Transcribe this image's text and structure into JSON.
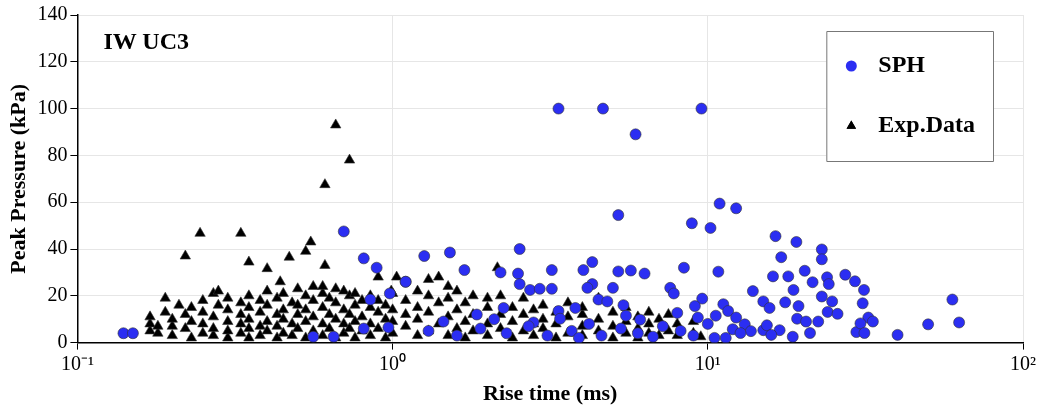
{
  "chart_data": {
    "type": "scatter",
    "xlabel": "Rise time (ms)",
    "ylabel": "Peak Pressure (kPa)",
    "annotations": [
      "IW UC3"
    ],
    "log": "x",
    "grid": true,
    "legend": "top right",
    "xlim": [
      0.1,
      100
    ],
    "xticks": [
      {
        "value": 0.1,
        "label": "10⁻¹"
      },
      {
        "value": 1,
        "label": "10⁰"
      },
      {
        "value": 10,
        "label": "10¹"
      },
      {
        "value": 100,
        "label": "10²"
      }
    ],
    "ylim": [
      0,
      140
    ],
    "yticks": [
      0,
      20,
      40,
      60,
      80,
      100,
      120,
      140
    ],
    "series": [
      {
        "name": "SPH",
        "color": "#2b2ef2",
        "marker": "circle",
        "x": [
          0.14,
          0.15,
          0.7,
          0.81,
          0.89,
          0.85,
          0.98,
          1.1,
          0.56,
          0.65,
          0.81,
          0.97,
          1.26,
          1.52,
          2.53,
          1.69,
          2.2,
          2.5,
          2.53,
          2.73,
          2.93,
          3.2,
          3.2,
          4.03,
          4.3,
          4.3,
          4.15,
          5.2,
          5.2,
          5.7,
          6.3,
          8.9,
          8.4,
          7.6,
          7.8,
          5,
          4.5,
          4.8,
          1.1,
          3.36,
          3.8,
          5.4,
          5.5,
          6.1,
          8,
          9.6,
          9.1,
          9.3,
          2.25,
          3.4,
          2.8,
          3.36,
          4.65,
          5.9,
          9.55,
          10.9,
          12.3,
          10.2,
          16.4,
          19.1,
          23,
          17.1,
          23,
          10.8,
          20.3,
          16.1,
          18,
          23.9,
          27.3,
          21.5,
          24.2,
          29.3,
          31.3,
          13.9,
          18.7,
          23,
          15,
          17.6,
          24.8,
          15.7,
          19.4,
          31,
          11.2,
          11.6,
          12.3,
          24,
          25.8,
          19.2,
          20.5,
          22.4,
          32.3,
          33.4,
          10.6,
          13.1,
          13.7,
          15,
          15.4,
          16.9,
          15.9,
          18.6,
          21.1,
          12,
          12.7,
          11.4,
          10.5,
          29.6,
          30.5,
          31.4,
          40,
          50,
          59.7,
          62.7,
          1.3,
          1.6,
          1.9,
          2.3,
          2.7,
          3.1,
          3.7,
          4.2,
          4.6,
          5.3,
          6,
          6.7,
          7.2,
          8.2,
          9,
          10,
          1.45,
          1.85,
          2.1,
          3.9
        ],
        "values": [
          4,
          4,
          47.5,
          36,
          32,
          18.4,
          21,
          26,
          2.5,
          2.5,
          6,
          6.5,
          37,
          38.5,
          40,
          31,
          30,
          29.5,
          25,
          22.5,
          23,
          31,
          23,
          31,
          34.4,
          25,
          23.4,
          54.5,
          30.4,
          30.8,
          29.5,
          51,
          32,
          23.4,
          21,
          23.4,
          18.4,
          17.6,
          26,
          13.5,
          14.8,
          16,
          11.5,
          9.8,
          12.7,
          18.8,
          15.6,
          10.7,
          14.8,
          10.2,
          8.6,
          100,
          100,
          89,
          100,
          59.4,
          57.4,
          49,
          45.5,
          43,
          39.8,
          36.5,
          35.6,
          30.3,
          30.7,
          28.3,
          28.3,
          27.9,
          29,
          25.8,
          25,
          26.2,
          22.5,
          22,
          22.5,
          19.7,
          17.6,
          17.2,
          17.6,
          14.8,
          15.6,
          16.8,
          16.4,
          13.5,
          10.7,
          13.1,
          12.3,
          10.2,
          9,
          9,
          10.7,
          9,
          11.5,
          7.8,
          4.9,
          5.3,
          7.4,
          5.3,
          3.3,
          2.5,
          4.1,
          5.7,
          4.1,
          2,
          2,
          4.5,
          8.2,
          4.1,
          3.3,
          7.8,
          18.4,
          8.6,
          5,
          3,
          6,
          4,
          7,
          3,
          5,
          8,
          3,
          6,
          4,
          2.5,
          7,
          5,
          3,
          8,
          9,
          12,
          10,
          2
        ]
      },
      {
        "name": "Exp.Data",
        "color": "#000000",
        "marker": "triangle",
        "x": [
          0.61,
          0.245,
          0.33,
          0.22,
          0.35,
          0.4,
          0.47,
          0.55,
          0.53,
          0.61,
          0.44,
          0.9,
          1.03,
          0.99,
          0.66,
          0.73,
          2.15,
          0.17,
          0.17,
          0.17,
          0.18,
          0.18,
          0.19,
          0.19,
          0.2,
          0.2,
          0.2,
          0.21,
          0.22,
          0.22,
          0.23,
          0.23,
          0.23,
          0.25,
          0.25,
          0.25,
          0.25,
          0.27,
          0.27,
          0.27,
          0.27,
          0.28,
          0.28,
          0.3,
          0.3,
          0.3,
          0.3,
          0.3,
          0.33,
          0.33,
          0.33,
          0.33,
          0.35,
          0.35,
          0.35,
          0.35,
          0.35,
          0.38,
          0.38,
          0.38,
          0.38,
          0.4,
          0.4,
          0.4,
          0.4,
          0.43,
          0.43,
          0.43,
          0.43,
          0.45,
          0.45,
          0.45,
          0.45,
          0.48,
          0.48,
          0.48,
          0.5,
          0.5,
          0.5,
          0.5,
          0.53,
          0.53,
          0.53,
          0.53,
          0.56,
          0.56,
          0.56,
          0.56,
          0.6,
          0.6,
          0.6,
          0.6,
          0.6,
          0.63,
          0.63,
          0.63,
          0.66,
          0.66,
          0.66,
          0.66,
          0.7,
          0.7,
          0.7,
          0.7,
          0.73,
          0.73,
          0.73,
          0.76,
          0.76,
          0.76,
          0.76,
          0.8,
          0.8,
          0.8,
          0.85,
          0.85,
          0.85,
          0.85,
          0.9,
          0.9,
          0.9,
          0.95,
          0.95,
          0.95,
          1,
          1,
          1,
          1,
          1.1,
          1.1,
          1.1,
          1.2,
          1.2,
          1.2,
          1.2,
          1.3,
          1.3,
          1.3,
          1.3,
          1.4,
          1.4,
          1.4,
          1.5,
          1.5,
          1.5,
          1.5,
          1.6,
          1.6,
          1.6,
          1.7,
          1.7,
          1.7,
          1.8,
          1.8,
          1.8,
          2,
          2,
          2,
          2,
          2.2,
          2.2,
          2.2,
          2.4,
          2.4,
          2.4,
          2.6,
          2.6,
          2.6,
          2.8,
          2.8,
          2.8,
          3,
          3,
          3,
          3.3,
          3.3,
          3.3,
          3.6,
          3.6,
          3.6,
          4,
          4,
          4,
          4,
          4.5,
          4.5,
          4.5,
          5,
          5,
          5,
          5.5,
          5.5,
          5.5,
          6,
          6,
          6,
          6.5,
          6.5,
          6.5,
          7,
          7,
          7.5,
          7.5,
          8,
          8,
          9,
          9,
          9.5
        ],
        "values": [
          67.5,
          46.7,
          46.7,
          37,
          34.4,
          31.6,
          36.5,
          43,
          39,
          33,
          26,
          28,
          28,
          22,
          93,
          78,
          32,
          5,
          8,
          11,
          4,
          7,
          13,
          19,
          3,
          7,
          10,
          16,
          6,
          12,
          2,
          9,
          15,
          4,
          8,
          13,
          18,
          3,
          6,
          11,
          21,
          16,
          22,
          2,
          5,
          9,
          14,
          19,
          4,
          8,
          12,
          17,
          2,
          6,
          10,
          15,
          20,
          3,
          7,
          13,
          18,
          5,
          9,
          16,
          22,
          2,
          7,
          12,
          19,
          4,
          10,
          14,
          21,
          3,
          8,
          17,
          6,
          12,
          16,
          23,
          2,
          9,
          14,
          20,
          5,
          11,
          18,
          24,
          3,
          8,
          15,
          21,
          24,
          6,
          12,
          19,
          2,
          10,
          17,
          23,
          4,
          8,
          14,
          22,
          6,
          12,
          20,
          2,
          9,
          16,
          21,
          5,
          11,
          18,
          3,
          8,
          15,
          20,
          6,
          13,
          18,
          2,
          10,
          16,
          4,
          9,
          14,
          21,
          7,
          12,
          18,
          3,
          10,
          15,
          22,
          5,
          13,
          20,
          27,
          8,
          17,
          28,
          3,
          11,
          19,
          24,
          6,
          14,
          22,
          2,
          9,
          17,
          5,
          12,
          20,
          3,
          8,
          15,
          19,
          6,
          12,
          20,
          2,
          9,
          15,
          5,
          12,
          19,
          3,
          8,
          14,
          6,
          10,
          16,
          2,
          8,
          13,
          4,
          11,
          17,
          3,
          7,
          12,
          15,
          5,
          10,
          19,
          2,
          7,
          13,
          4,
          9,
          15,
          2,
          6,
          11,
          4,
          8,
          13,
          3,
          10,
          5,
          12,
          3,
          8,
          4,
          9,
          2.5
        ]
      }
    ]
  }
}
